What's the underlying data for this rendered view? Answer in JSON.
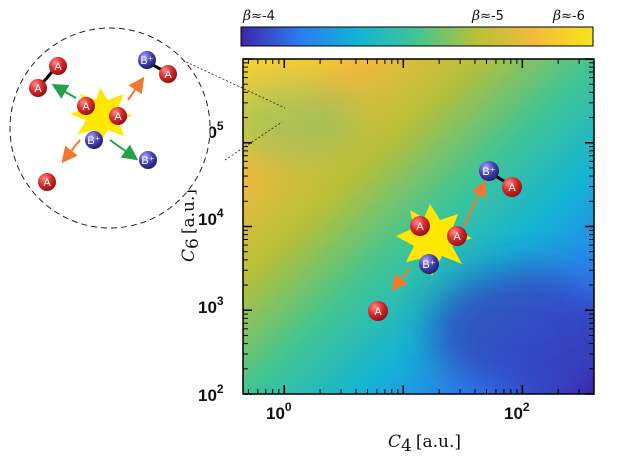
{
  "chart_data": {
    "type": "heatmap",
    "title": "",
    "xlabel": {
      "symbol": "C",
      "subscript": "4",
      "unit": "[a.u.]"
    },
    "ylabel": {
      "symbol": "C",
      "subscript": "6",
      "unit": "[a.u.]"
    },
    "x_scale": "log",
    "y_scale": "log",
    "xlim": [
      0.45,
      400
    ],
    "ylim": [
      100,
      1000000
    ],
    "x_ticks": [
      {
        "value": 1,
        "base": "10",
        "exp": "0"
      },
      {
        "value": 100,
        "base": "10",
        "exp": "2"
      }
    ],
    "y_ticks": [
      {
        "value": 100,
        "base": "10",
        "exp": "2"
      },
      {
        "value": 1000,
        "base": "10",
        "exp": "3"
      },
      {
        "value": 10000,
        "base": "10",
        "exp": "4"
      },
      {
        "value": 100000,
        "base": "10",
        "exp": "5"
      }
    ],
    "colorbar": {
      "colormap": "viridis-like",
      "labels": [
        {
          "prefix": "β",
          "text": "≈-4"
        },
        {
          "prefix": "β",
          "text": "≈-5"
        },
        {
          "prefix": "β",
          "text": "≈-6"
        }
      ],
      "colors": [
        "#3d26a8",
        "#2c7bf0",
        "#14b3d5",
        "#42c592",
        "#b6c03a",
        "#f4ba3d",
        "#f7e41e"
      ]
    },
    "annotations": {
      "atom_labels": [
        "A",
        "B⁺"
      ],
      "ion_color": "#4a45b5",
      "neutral_color": "#d92b2b",
      "burst_color": "#ffe800",
      "arrow_colors": [
        "#ef7a2f",
        "#22a34a"
      ]
    }
  }
}
